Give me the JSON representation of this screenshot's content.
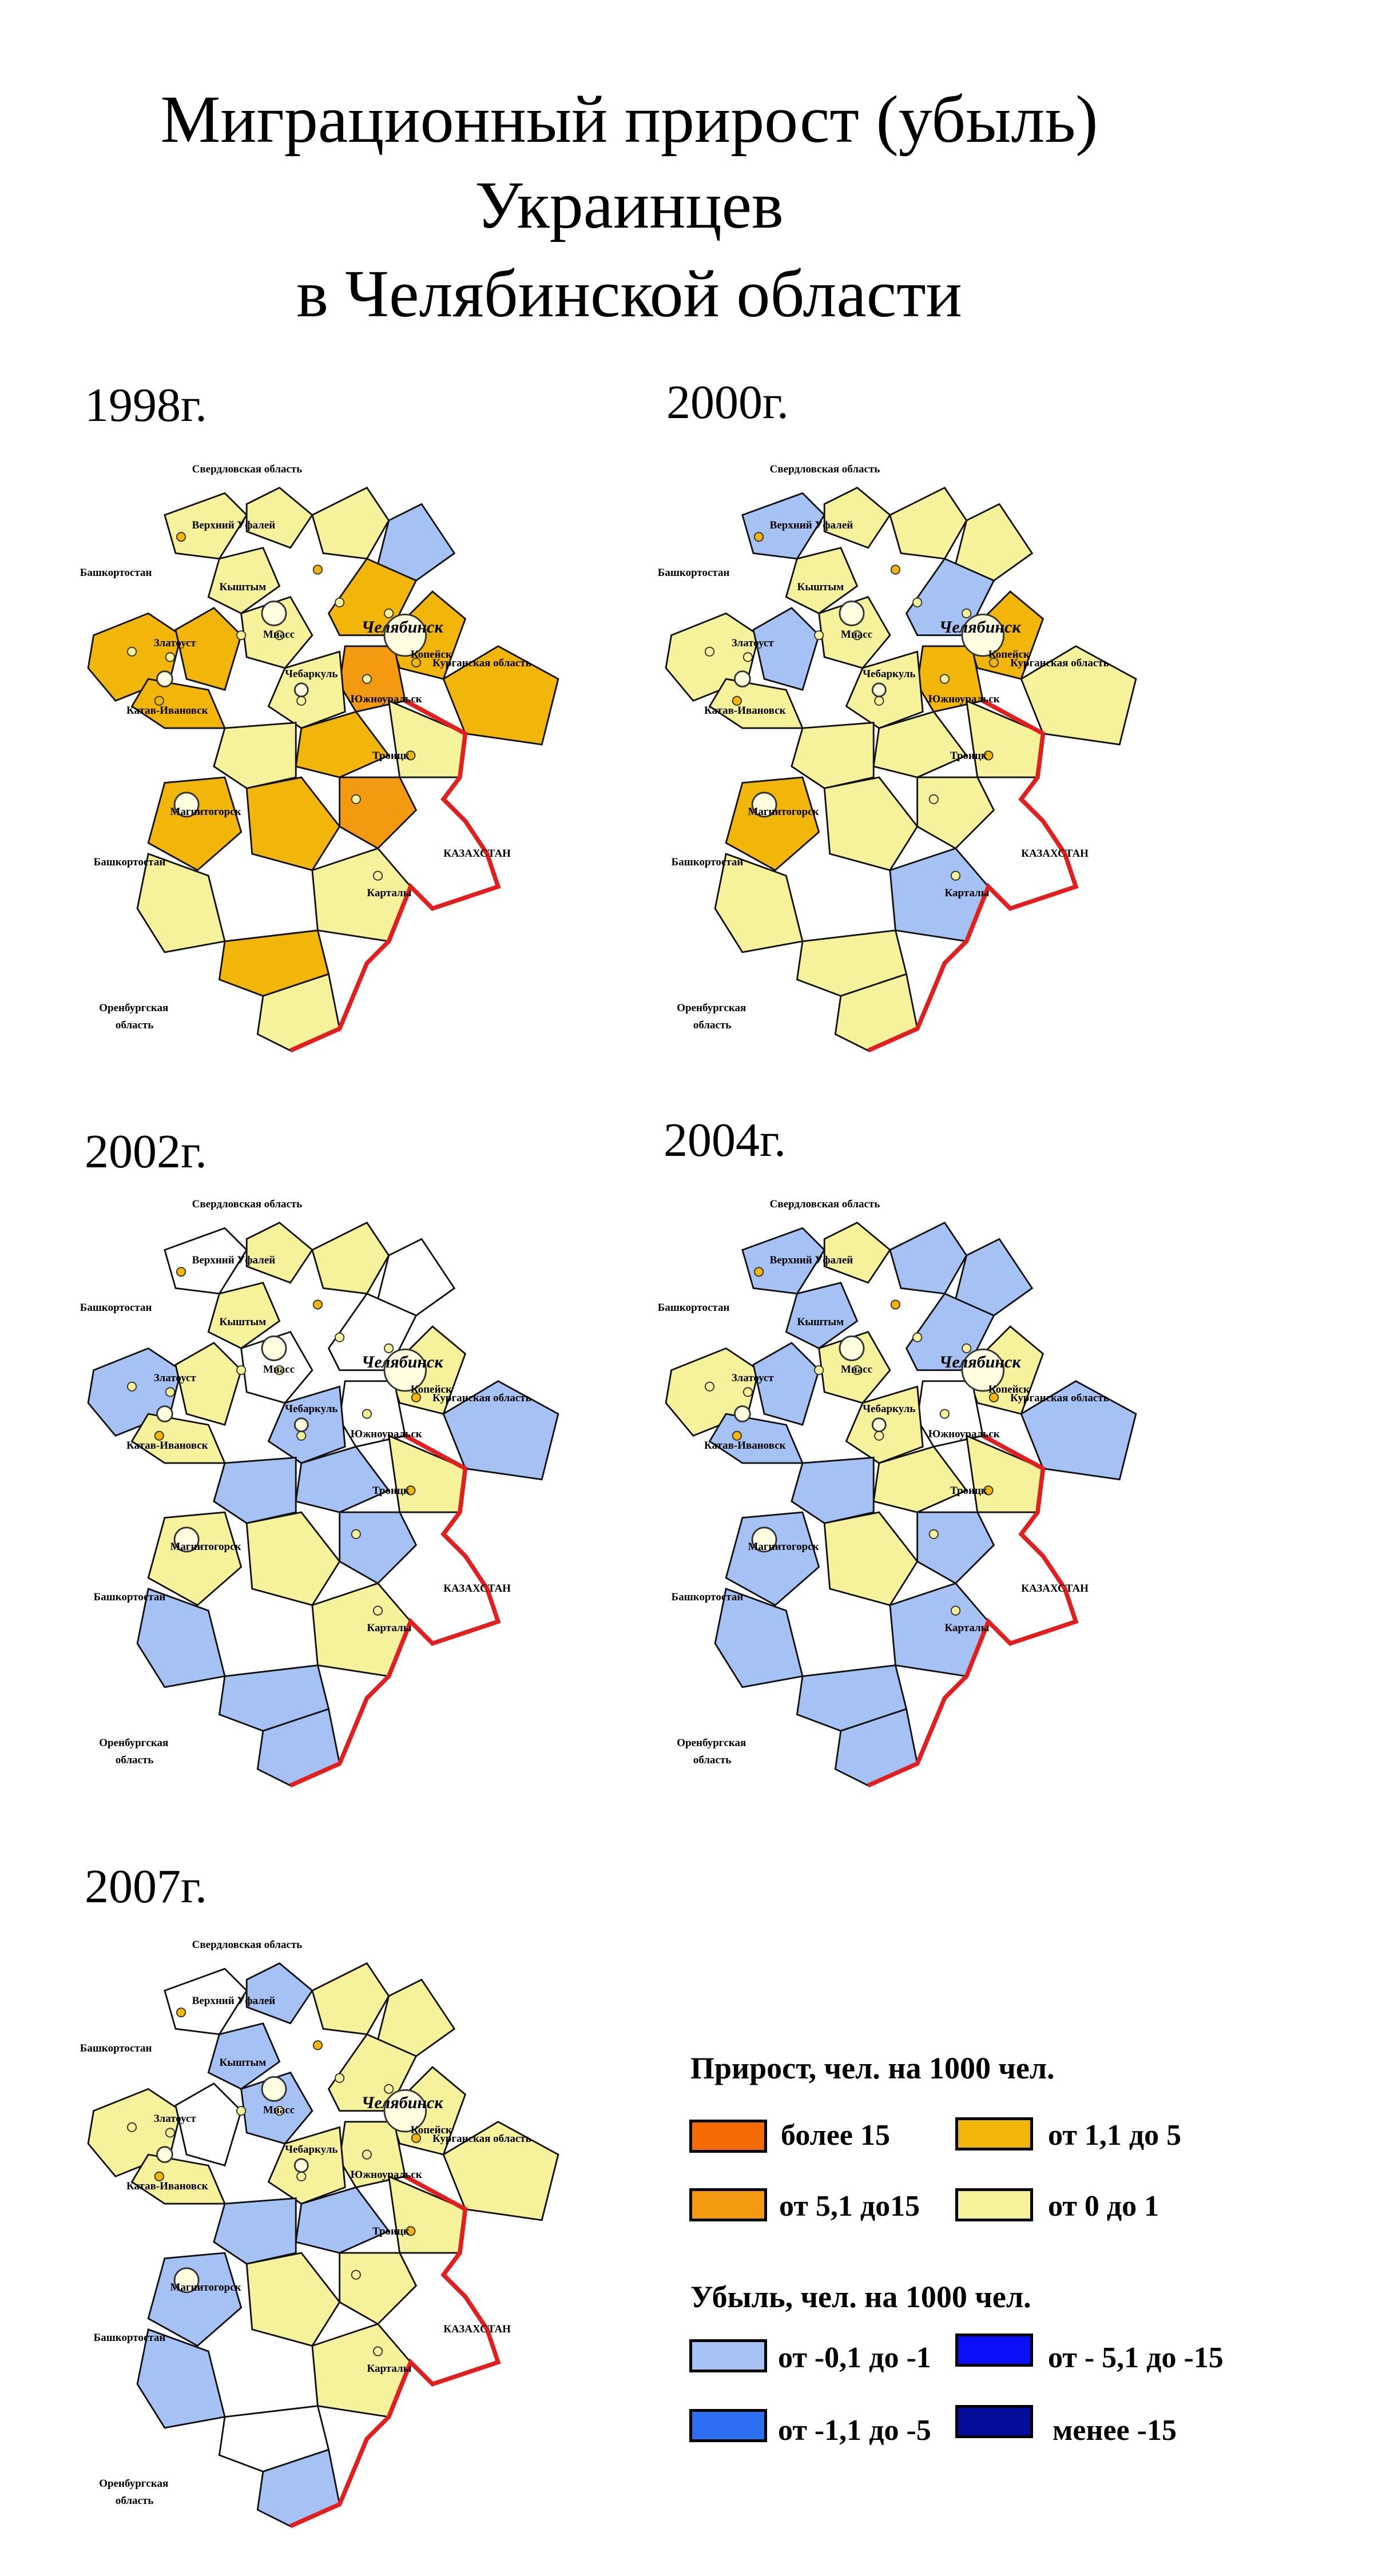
{
  "title": {
    "line1": "Миграционный прирост (убыль)",
    "line2": "Украинцев",
    "line3": "в Челябинской области"
  },
  "colors": {
    "more15": "#F26B05",
    "c5to15": "#F39A10",
    "c1to5": "#F2B50A",
    "c0to1": "#F6F29B",
    "neg01to1": "#A6C2F4",
    "neg1to5": "#2E6FF2",
    "neg5to15": "#0A10F5",
    "less15": "#050C9A",
    "nodata": "#FFFFFF",
    "border": "#E21F1F"
  },
  "map_labels": {
    "sverdlovsk": "Свердловская область",
    "bashkortostan_top": "Башкортостан",
    "bashkortostan_bottom": "Башкортостан",
    "chelyabinsk": "Челябинск",
    "kurgan": "Курганская область",
    "kazakhstan": "КАЗАХСТАН",
    "orenburg_1": "Оренбургская",
    "orenburg_2": "область",
    "miass": "Миасс",
    "troitsk": "Троицк",
    "yuzhnouralsk": "Южноуральск",
    "kartaly": "Карталы",
    "magnitogorsk": "Магнитогорск",
    "chebarkul": "Чебаркуль",
    "kopeysk": "Копейск",
    "kyshtym": "Кыштым",
    "zlatoust": "Златоуст",
    "verkhniy_ufaley": "Верхний Уфалей",
    "katav_ivanovsk": "Катав-Ивановск"
  },
  "maps": [
    {
      "year": "1998г.",
      "regions": [
        "c0to1",
        "c0to1",
        "c0to1",
        "neg01to1",
        "c1to5",
        "c0to1",
        "c1to5",
        "c1to5",
        "c0to1",
        "c1to5",
        "c5to15",
        "c1to5",
        "c0to1",
        "c1to5",
        "c1to5",
        "c0to1",
        "c0to1",
        "c1to5",
        "c1to5",
        "c5to15",
        "c0to1",
        "c0to1",
        "c1to5",
        "c0to1"
      ]
    },
    {
      "year": "2000г.",
      "regions": [
        "neg01to1",
        "c0to1",
        "c0to1",
        "c0to1",
        "neg01to1",
        "c0to1",
        "c0to1",
        "neg01to1",
        "c0to1",
        "c1to5",
        "c1to5",
        "c0to1",
        "c0to1",
        "c0to1",
        "c0to1",
        "c0to1",
        "c0to1",
        "c1to5",
        "c0to1",
        "c0to1",
        "neg01to1",
        "c0to1",
        "c0to1",
        "c0to1"
      ]
    },
    {
      "year": "2002г.",
      "regions": [
        "nodata",
        "c0to1",
        "c0to1",
        "nodata",
        "nodata",
        "c0to1",
        "neg01to1",
        "c0to1",
        "nodata",
        "c0to1",
        "nodata",
        "neg01to1",
        "neg01to1",
        "c0to1",
        "neg01to1",
        "c0to1",
        "neg01to1",
        "c0to1",
        "c0to1",
        "neg01to1",
        "c0to1",
        "neg01to1",
        "neg01to1",
        "neg01to1"
      ]
    },
    {
      "year": "2004г.",
      "regions": [
        "neg01to1",
        "c0to1",
        "neg01to1",
        "neg01to1",
        "neg01to1",
        "neg01to1",
        "c0to1",
        "neg01to1",
        "c0to1",
        "c0to1",
        "nodata",
        "neg01to1",
        "c0to1",
        "neg01to1",
        "c0to1",
        "c0to1",
        "neg01to1",
        "neg01to1",
        "c0to1",
        "neg01to1",
        "neg01to1",
        "neg01to1",
        "neg01to1",
        "neg01to1"
      ]
    },
    {
      "year": "2007г.",
      "regions": [
        "nodata",
        "neg01to1",
        "c0to1",
        "c0to1",
        "c0to1",
        "neg01to1",
        "c0to1",
        "nodata",
        "neg01to1",
        "c0to1",
        "c0to1",
        "c0to1",
        "c0to1",
        "c0to1",
        "neg01to1",
        "c0to1",
        "neg01to1",
        "neg01to1",
        "c0to1",
        "c0to1",
        "c0to1",
        "neg01to1",
        "nodata",
        "neg01to1"
      ]
    }
  ],
  "legend": {
    "growth_title": "Прирост, чел. на 1000 чел.",
    "decline_title": "Убыль, чел. на 1000 чел.",
    "items": {
      "more15": "более 15",
      "c1to5": "от 1,1 до 5",
      "c5to15": "от 5,1 до15",
      "c0to1": "от 0 до 1",
      "neg01to1": "от -0,1 до -1",
      "neg5to15": "от - 5,1 до -15",
      "neg1to5": "от -1,1 до -5",
      "less15": "менее -15"
    }
  }
}
